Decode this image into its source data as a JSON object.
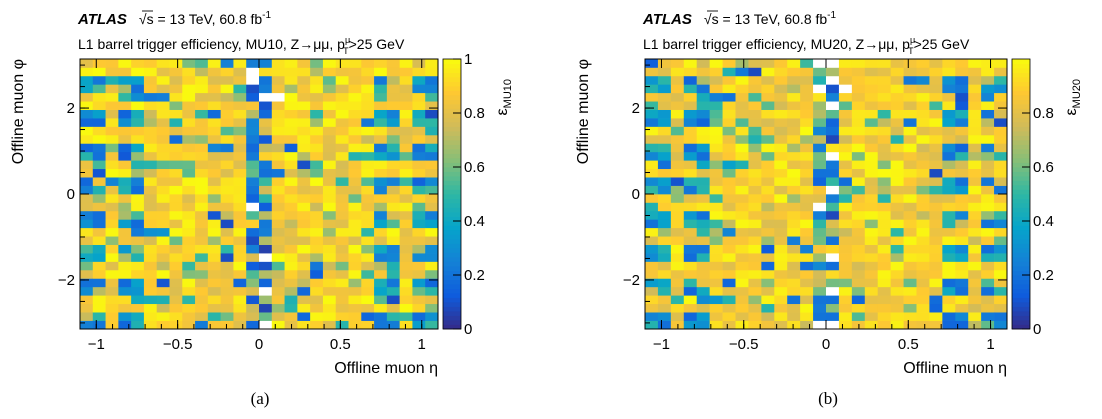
{
  "panels": [
    {
      "caption": "(a)",
      "atlas_label": "ATLAS",
      "energy_label": "√s = 13 TeV, 60.8 fb",
      "lumi_exponent": "-1",
      "description_label": "L1 barrel trigger efficiency, MU10, Z→μμ, p",
      "pt_sup": "μ",
      "pt_sub": "T",
      "cut_label": ">25 GeV",
      "z_label_main": "ε",
      "z_label_sub": "MU10"
    },
    {
      "caption": "(b)",
      "atlas_label": "ATLAS",
      "energy_label": "√s = 13 TeV, 60.8 fb",
      "lumi_exponent": "-1",
      "description_label": "L1 barrel trigger efficiency, MU20, Z→μμ, p",
      "pt_sup": "μ",
      "pt_sub": "T",
      "cut_label": ">25 GeV",
      "z_label_main": "ε",
      "z_label_sub": "MU20"
    }
  ],
  "chart_data": [
    {
      "type": "heatmap",
      "title": "L1 barrel trigger efficiency, MU10, Z→μμ, pTμ>25 GeV",
      "xlabel": "Offline muon η",
      "ylabel": "Offline muon φ",
      "zlabel": "εMU10",
      "xlim": [
        -1.1,
        1.1
      ],
      "ylim": [
        -3.1416,
        3.1416
      ],
      "zlim": [
        0,
        1
      ],
      "x_ticks": [
        -1,
        -0.5,
        0,
        0.5,
        1
      ],
      "x_tick_labels": [
        "−1",
        "−0.5",
        "0",
        "0.5",
        "1"
      ],
      "y_ticks": [
        -2,
        0,
        2
      ],
      "y_tick_labels": [
        "−2",
        "0",
        "2"
      ],
      "z_ticks": [
        0,
        0.2,
        0.4,
        0.6,
        0.8,
        1
      ],
      "z_tick_labels": [
        "0",
        "0.2",
        "0.4",
        "0.6",
        "0.8",
        "1"
      ],
      "colormap": [
        "#352a87",
        "#0f5cdd",
        "#1481d6",
        "#06a4ca",
        "#2eb7a4",
        "#87bf77",
        "#d1bb59",
        "#fec832",
        "#f9fb0e"
      ],
      "grid": false,
      "x_bins": 28,
      "y_bins": 32,
      "efficiency_seed": 11,
      "low_efficiency_regions": "eta near 0 (detector crack), periodic phi sectors near eta ±0.2, ±0.75",
      "empty_cells": [
        [
          13,
          29
        ],
        [
          13,
          30
        ],
        [
          14,
          27
        ],
        [
          15,
          27
        ],
        [
          14,
          8
        ],
        [
          14,
          4
        ],
        [
          14,
          0
        ],
        [
          13,
          14
        ]
      ]
    },
    {
      "type": "heatmap",
      "title": "L1 barrel trigger efficiency, MU20, Z→μμ, pTμ>25 GeV",
      "xlabel": "Offline muon η",
      "ylabel": "Offline muon φ",
      "zlabel": "εMU20",
      "xlim": [
        -1.1,
        1.1
      ],
      "ylim": [
        -3.1416,
        3.1416
      ],
      "zlim": [
        0,
        1
      ],
      "x_ticks": [
        -1,
        -0.5,
        0,
        0.5,
        1
      ],
      "x_tick_labels": [
        "−1",
        "−0.5",
        "0",
        "0.5",
        "1"
      ],
      "y_ticks": [
        -2,
        0,
        2
      ],
      "y_tick_labels": [
        "−2",
        "0",
        "2"
      ],
      "z_ticks": [
        0,
        0.2,
        0.4,
        0.6,
        0.8
      ],
      "z_tick_labels": [
        "0",
        "0.2",
        "0.4",
        "0.6",
        "0.8"
      ],
      "colormap": [
        "#352a87",
        "#0f5cdd",
        "#1481d6",
        "#06a4ca",
        "#2eb7a4",
        "#87bf77",
        "#d1bb59",
        "#fec832",
        "#f9fb0e"
      ],
      "grid": false,
      "x_bins": 28,
      "y_bins": 32,
      "efficiency_seed": 29,
      "low_efficiency_regions": "eta near 0 (detector crack), periodic phi sectors near eta ±0.2, ±0.75",
      "empty_cells": [
        [
          13,
          31
        ],
        [
          14,
          31
        ],
        [
          14,
          29
        ],
        [
          13,
          28
        ],
        [
          15,
          28
        ],
        [
          14,
          26
        ],
        [
          14,
          20
        ],
        [
          14,
          16
        ],
        [
          14,
          8
        ],
        [
          14,
          4
        ],
        [
          14,
          0
        ],
        [
          13,
          0
        ],
        [
          13,
          14
        ]
      ]
    }
  ]
}
